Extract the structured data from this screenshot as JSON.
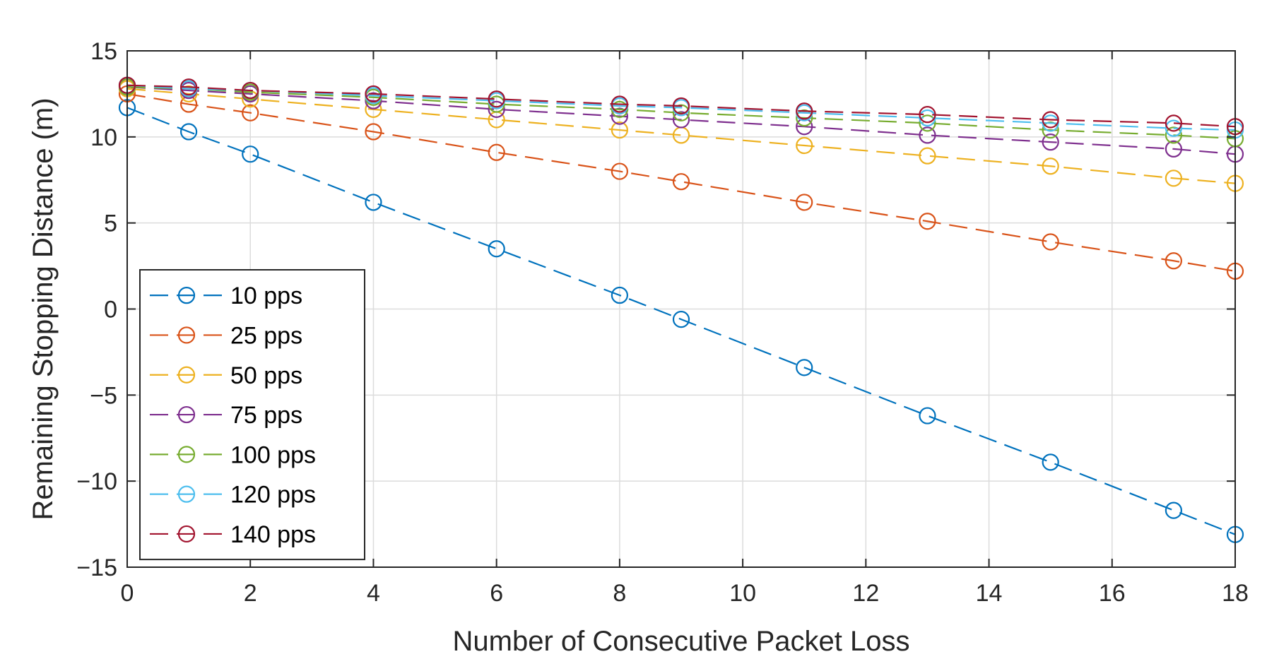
{
  "chart_data": {
    "type": "line",
    "title": "",
    "xlabel": "Number of Consecutive Packet Loss",
    "ylabel": "Remaining Stopping Distance (m)",
    "xlim": [
      0,
      18
    ],
    "ylim": [
      -15,
      15
    ],
    "xticks": [
      0,
      2,
      4,
      6,
      8,
      10,
      12,
      14,
      16,
      18
    ],
    "yticks": [
      -15,
      -10,
      -5,
      0,
      5,
      10,
      15
    ],
    "xtick_labels": [
      "0",
      "2",
      "4",
      "6",
      "8",
      "10",
      "12",
      "14",
      "16",
      "18"
    ],
    "ytick_labels": [
      "−15",
      "−10",
      "−5",
      "0",
      "5",
      "10",
      "15"
    ],
    "grid": true,
    "legend_position": "bottom-left",
    "x": [
      0,
      1,
      2,
      4,
      6,
      8,
      9,
      11,
      13,
      15,
      17,
      18
    ],
    "series": [
      {
        "name": "10 pps",
        "color": "#0072BD",
        "values": [
          11.7,
          10.3,
          9.0,
          6.2,
          3.5,
          0.8,
          -0.6,
          -3.4,
          -6.2,
          -8.9,
          -11.7,
          -13.1
        ]
      },
      {
        "name": "25 pps",
        "color": "#D95319",
        "values": [
          12.5,
          11.9,
          11.4,
          10.3,
          9.1,
          8.0,
          7.4,
          6.2,
          5.1,
          3.9,
          2.8,
          2.2
        ]
      },
      {
        "name": "50 pps",
        "color": "#EDB120",
        "values": [
          12.8,
          12.5,
          12.2,
          11.6,
          11.0,
          10.4,
          10.1,
          9.5,
          8.9,
          8.3,
          7.6,
          7.3
        ]
      },
      {
        "name": "75 pps",
        "color": "#7E2F8E",
        "values": [
          12.9,
          12.7,
          12.5,
          12.1,
          11.6,
          11.2,
          11.0,
          10.6,
          10.1,
          9.7,
          9.3,
          9.0
        ]
      },
      {
        "name": "100 pps",
        "color": "#77AC30",
        "values": [
          12.9,
          12.8,
          12.6,
          12.3,
          11.9,
          11.6,
          11.4,
          11.1,
          10.8,
          10.4,
          10.1,
          9.9
        ]
      },
      {
        "name": "120 pps",
        "color": "#4DBEEE",
        "values": [
          13.0,
          12.8,
          12.7,
          12.4,
          12.1,
          11.8,
          11.7,
          11.4,
          11.1,
          10.8,
          10.5,
          10.4
        ]
      },
      {
        "name": "140 pps",
        "color": "#A2142F",
        "values": [
          13.0,
          12.9,
          12.7,
          12.5,
          12.2,
          11.9,
          11.8,
          11.5,
          11.3,
          11.0,
          10.8,
          10.6
        ]
      }
    ]
  }
}
